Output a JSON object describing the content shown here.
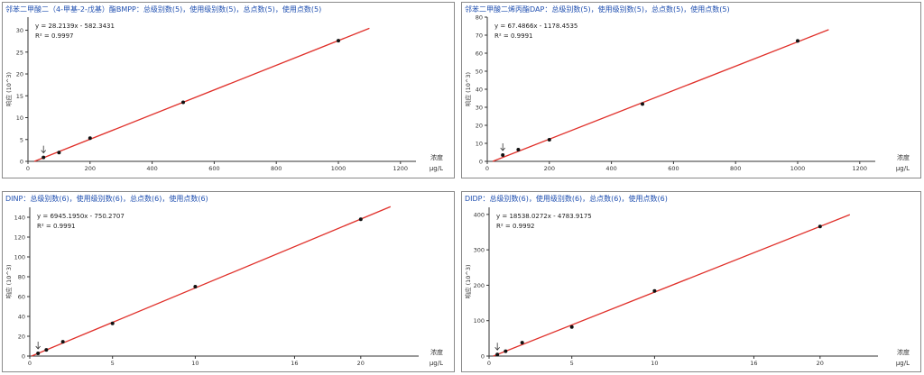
{
  "chart_data": [
    {
      "type": "scatter",
      "title": "邻苯二甲酸二（4-甲基-2-戊基）酯BMPP：总级别数(5)，使用级别数(5)，总点数(5)，使用点数(5)",
      "equation": "y = 28.2139x - 582.3431",
      "r2": "R² = 0.9997",
      "ylabel": "响应 (10^3)",
      "xlabel_top": "浓度",
      "xlabel_unit": "μg/L",
      "xlim": [
        0,
        1250
      ],
      "ylim": [
        0,
        33
      ],
      "xticks": [
        0,
        200,
        400,
        600,
        800,
        1000,
        1200
      ],
      "yticks": [
        0,
        5,
        10,
        15,
        20,
        25,
        30
      ],
      "points": [
        {
          "x": 50,
          "y": 0.9
        },
        {
          "x": 100,
          "y": 2.0
        },
        {
          "x": 200,
          "y": 5.3
        },
        {
          "x": 500,
          "y": 13.5
        },
        {
          "x": 1000,
          "y": 27.6
        }
      ],
      "fit": {
        "slope": 0.0282139,
        "intercept": -0.5823,
        "x_from": 20.6,
        "x_to": 1100
      },
      "marker_x": 50,
      "colors": {
        "fit": "#e0302a",
        "point": "#111111",
        "title": "#1f4fb0"
      }
    },
    {
      "type": "scatter",
      "title": "邻苯二甲酸二烯丙酯DAP：总级别数(5)，使用级别数(5)，总点数(5)，使用点数(5)",
      "equation": "y = 67.4866x - 1178.4535",
      "r2": "R² = 0.9991",
      "ylabel": "响应 (10^3)",
      "xlabel_top": "浓度",
      "xlabel_unit": "μg/L",
      "xlim": [
        0,
        1250
      ],
      "ylim": [
        0,
        80
      ],
      "xticks": [
        0,
        200,
        400,
        600,
        800,
        1000,
        1200
      ],
      "yticks": [
        0,
        10,
        20,
        30,
        40,
        50,
        60,
        70,
        80
      ],
      "points": [
        {
          "x": 50,
          "y": 3.5
        },
        {
          "x": 100,
          "y": 6.5
        },
        {
          "x": 200,
          "y": 12.0
        },
        {
          "x": 500,
          "y": 31.8
        },
        {
          "x": 1000,
          "y": 66.8
        }
      ],
      "fit": {
        "slope": 0.0674866,
        "intercept": -1.1785,
        "x_from": 17.5,
        "x_to": 1100
      },
      "marker_x": 50,
      "colors": {
        "fit": "#e0302a",
        "point": "#111111",
        "title": "#1f4fb0"
      }
    },
    {
      "type": "scatter",
      "title": "DINP：总级别数(6)，使用级别数(6)，总点数(6)，使用点数(6)",
      "equation": "y = 6945.1950x - 750.2707",
      "r2": "R² = 0.9991",
      "ylabel": "响应 (10^3)",
      "xlabel_top": "浓度",
      "xlabel_unit": "μg/L",
      "xlim": [
        0,
        23.5
      ],
      "ylim": [
        0,
        150
      ],
      "xticks": [
        0,
        5,
        10,
        16,
        20
      ],
      "yticks": [
        0,
        20,
        40,
        60,
        80,
        100,
        120,
        140
      ],
      "points": [
        {
          "x": 0.5,
          "y": 2.7
        },
        {
          "x": 1,
          "y": 6.2
        },
        {
          "x": 2,
          "y": 14.4
        },
        {
          "x": 5,
          "y": 33.0
        },
        {
          "x": 10,
          "y": 70.0
        },
        {
          "x": 20,
          "y": 138.0
        }
      ],
      "fit": {
        "slope": 6.945195,
        "intercept": -0.7503,
        "x_from": 0.108,
        "x_to": 21.8
      },
      "marker_x": 0.5,
      "colors": {
        "fit": "#e0302a",
        "point": "#111111",
        "title": "#1f4fb0"
      }
    },
    {
      "type": "scatter",
      "title": "DIDP：总级别数(6)，使用级别数(6)，总点数(6)，使用点数(6)",
      "equation": "y = 18538.0272x - 4783.9175",
      "r2": "R² = 0.9992",
      "ylabel": "响应 (10^3)",
      "xlabel_top": "浓度",
      "xlabel_unit": "μg/L",
      "xlim": [
        0,
        23.5
      ],
      "ylim": [
        0,
        420
      ],
      "xticks": [
        0,
        5,
        10,
        16,
        20
      ],
      "yticks": [
        0,
        100,
        200,
        300,
        400
      ],
      "points": [
        {
          "x": 0.5,
          "y": 4.5
        },
        {
          "x": 1,
          "y": 13.6
        },
        {
          "x": 2,
          "y": 37.9
        },
        {
          "x": 5,
          "y": 82.0
        },
        {
          "x": 10,
          "y": 184.0
        },
        {
          "x": 20,
          "y": 366.0
        }
      ],
      "fit": {
        "slope": 18.5380272,
        "intercept": -4.7839,
        "x_from": 0.258,
        "x_to": 21.8
      },
      "marker_x": 0.5,
      "colors": {
        "fit": "#e0302a",
        "point": "#111111",
        "title": "#1f4fb0"
      }
    }
  ]
}
